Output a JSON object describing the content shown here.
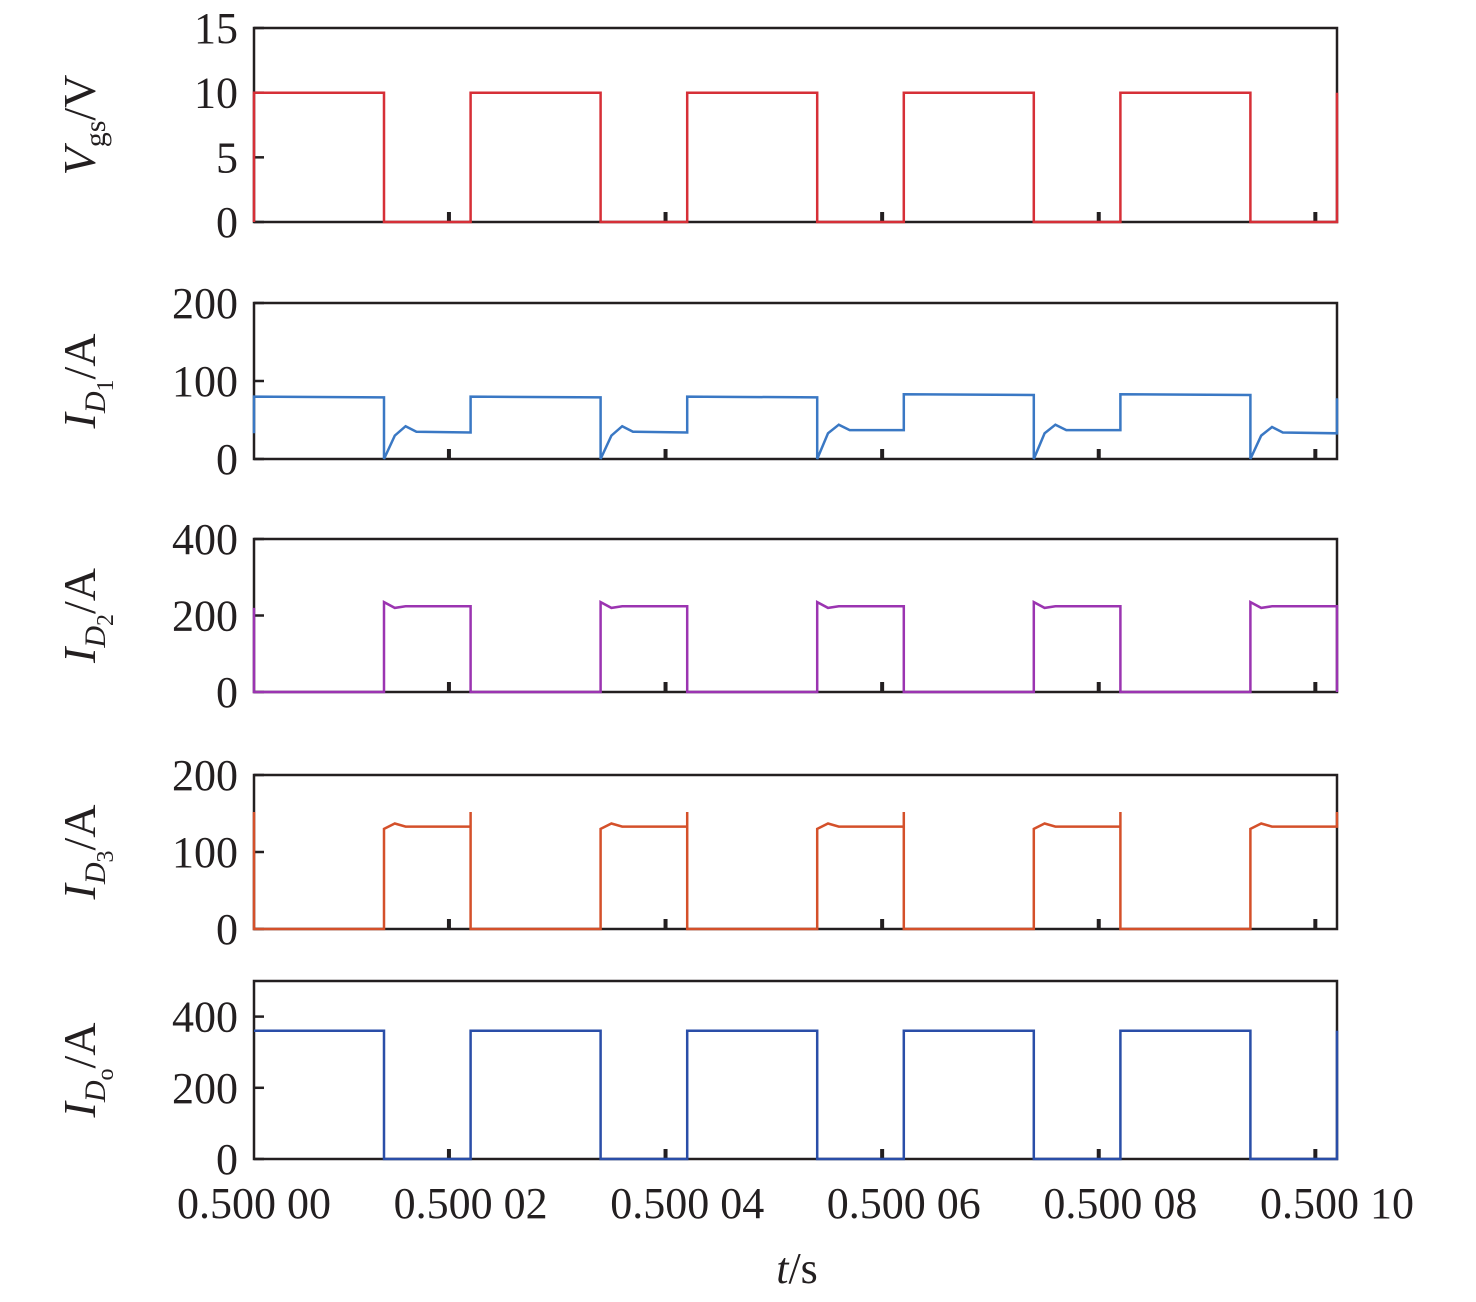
{
  "colors": {
    "axis": "#231f20",
    "vgs": "#d62f37",
    "id1": "#3a78c4",
    "id2": "#9b34b1",
    "id3": "#d4502a",
    "ido": "#2a4ea8"
  },
  "chart_data": {
    "type": "line",
    "xlabel": {
      "italic": "t",
      "rest": "/s"
    },
    "x_tick_labels": [
      "0.500 00",
      "0.500 02",
      "0.500 04",
      "0.500 06",
      "0.500 08",
      "0.500 10"
    ],
    "xlim": [
      0.5,
      0.5001
    ],
    "period_us": 20,
    "duty": 0.6,
    "panels": [
      {
        "name": "vgs",
        "ylabel": {
          "main": "V",
          "sub": "gs",
          "unit": "/V"
        },
        "ylim": [
          0,
          15
        ],
        "yticks": [
          0,
          5,
          10,
          15
        ],
        "color_key": "vgs",
        "points": [
          [
            0,
            0
          ],
          [
            0,
            10
          ],
          [
            12,
            10
          ],
          [
            12,
            0
          ],
          [
            20,
            0
          ],
          [
            20,
            10
          ],
          [
            32,
            10
          ],
          [
            32,
            0
          ],
          [
            40,
            0
          ],
          [
            40,
            10
          ],
          [
            52,
            10
          ],
          [
            52,
            0
          ],
          [
            60,
            0
          ],
          [
            60,
            10
          ],
          [
            72,
            10
          ],
          [
            72,
            0
          ],
          [
            80,
            0
          ],
          [
            80,
            10
          ],
          [
            92,
            10
          ],
          [
            92,
            0
          ],
          [
            100,
            0
          ],
          [
            100,
            10
          ]
        ]
      },
      {
        "name": "id1",
        "ylabel": {
          "main": "I",
          "sub": "D",
          "subsub": "1",
          "unit": "/A"
        },
        "ylim": [
          0,
          200
        ],
        "yticks": [
          0,
          100,
          200
        ],
        "color_key": "id1",
        "points": [
          [
            0,
            33
          ],
          [
            0,
            80
          ],
          [
            12,
            79
          ],
          [
            12,
            0
          ],
          [
            13,
            30
          ],
          [
            14,
            42
          ],
          [
            15,
            35
          ],
          [
            20,
            34
          ],
          [
            20,
            80
          ],
          [
            32,
            79
          ],
          [
            32,
            0
          ],
          [
            33,
            30
          ],
          [
            34,
            42
          ],
          [
            35,
            35
          ],
          [
            40,
            34
          ],
          [
            40,
            80
          ],
          [
            52,
            79
          ],
          [
            52,
            0
          ],
          [
            53,
            33
          ],
          [
            54,
            44
          ],
          [
            55,
            37
          ],
          [
            60,
            37
          ],
          [
            60,
            83
          ],
          [
            72,
            82
          ],
          [
            72,
            0
          ],
          [
            73,
            33
          ],
          [
            74,
            44
          ],
          [
            75,
            37
          ],
          [
            80,
            37
          ],
          [
            80,
            83
          ],
          [
            92,
            82
          ],
          [
            92,
            0
          ],
          [
            93,
            30
          ],
          [
            94,
            41
          ],
          [
            95,
            34
          ],
          [
            100,
            33
          ],
          [
            100,
            78
          ]
        ]
      },
      {
        "name": "id2",
        "ylabel": {
          "main": "I",
          "sub": "D",
          "subsub": "2",
          "unit": "/A"
        },
        "ylim": [
          0,
          400
        ],
        "yticks": [
          0,
          200,
          400
        ],
        "color_key": "id2",
        "points": [
          [
            0,
            220
          ],
          [
            0,
            0
          ],
          [
            12,
            0
          ],
          [
            12,
            235
          ],
          [
            13,
            220
          ],
          [
            14,
            224
          ],
          [
            20,
            224
          ],
          [
            20,
            0
          ],
          [
            32,
            0
          ],
          [
            32,
            235
          ],
          [
            33,
            220
          ],
          [
            34,
            224
          ],
          [
            40,
            224
          ],
          [
            40,
            0
          ],
          [
            52,
            0
          ],
          [
            52,
            235
          ],
          [
            53,
            220
          ],
          [
            54,
            224
          ],
          [
            60,
            224
          ],
          [
            60,
            0
          ],
          [
            72,
            0
          ],
          [
            72,
            235
          ],
          [
            73,
            220
          ],
          [
            74,
            224
          ],
          [
            80,
            224
          ],
          [
            80,
            0
          ],
          [
            92,
            0
          ],
          [
            92,
            235
          ],
          [
            93,
            220
          ],
          [
            94,
            224
          ],
          [
            100,
            224
          ],
          [
            100,
            0
          ]
        ]
      },
      {
        "name": "id3",
        "ylabel": {
          "main": "I",
          "sub": "D",
          "subsub": "3",
          "unit": "/A"
        },
        "ylim": [
          0,
          200
        ],
        "yticks": [
          0,
          100,
          200
        ],
        "color_key": "id3",
        "points": [
          [
            0,
            152
          ],
          [
            0,
            0
          ],
          [
            12,
            0
          ],
          [
            12,
            130
          ],
          [
            13,
            137
          ],
          [
            14,
            133
          ],
          [
            20,
            133
          ],
          [
            20,
            152
          ],
          [
            20,
            0
          ],
          [
            32,
            0
          ],
          [
            32,
            130
          ],
          [
            33,
            137
          ],
          [
            34,
            133
          ],
          [
            40,
            133
          ],
          [
            40,
            152
          ],
          [
            40,
            0
          ],
          [
            52,
            0
          ],
          [
            52,
            130
          ],
          [
            53,
            137
          ],
          [
            54,
            133
          ],
          [
            60,
            133
          ],
          [
            60,
            152
          ],
          [
            60,
            0
          ],
          [
            72,
            0
          ],
          [
            72,
            130
          ],
          [
            73,
            137
          ],
          [
            74,
            133
          ],
          [
            80,
            133
          ],
          [
            80,
            152
          ],
          [
            80,
            0
          ],
          [
            92,
            0
          ],
          [
            92,
            130
          ],
          [
            93,
            137
          ],
          [
            94,
            133
          ],
          [
            100,
            133
          ],
          [
            100,
            152
          ]
        ]
      },
      {
        "name": "ido",
        "ylabel": {
          "main": "I",
          "sub": "D",
          "subsub": "o",
          "unit": "/A"
        },
        "ylim": [
          0,
          500
        ],
        "yticks": [
          0,
          200,
          400
        ],
        "color_key": "ido",
        "points": [
          [
            0,
            360
          ],
          [
            12,
            360
          ],
          [
            12,
            0
          ],
          [
            20,
            0
          ],
          [
            20,
            360
          ],
          [
            32,
            360
          ],
          [
            32,
            0
          ],
          [
            40,
            0
          ],
          [
            40,
            360
          ],
          [
            52,
            360
          ],
          [
            52,
            0
          ],
          [
            60,
            0
          ],
          [
            60,
            360
          ],
          [
            72,
            360
          ],
          [
            72,
            0
          ],
          [
            80,
            0
          ],
          [
            80,
            360
          ],
          [
            92,
            360
          ],
          [
            92,
            0
          ],
          [
            100,
            0
          ],
          [
            100,
            360
          ]
        ]
      }
    ]
  }
}
